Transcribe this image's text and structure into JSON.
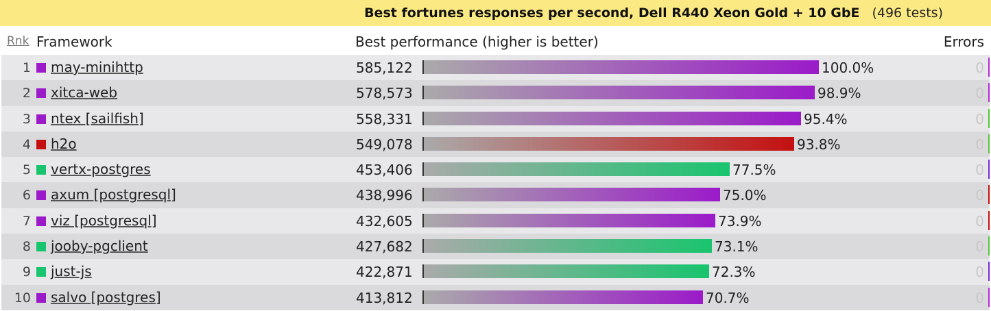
{
  "banner": {
    "title": "Best fortunes responses per second, Dell R440 Xeon Gold + 10 GbE",
    "tests": "(496 tests)"
  },
  "header": {
    "rank": "Rnk",
    "framework": "Framework",
    "performance": "Best performance (higher is better)",
    "errors": "Errors"
  },
  "colors": {
    "purple": "#9b1bc9",
    "red": "#c41010",
    "green": "#19c46e",
    "banner": "#fbea83"
  },
  "chart_data": {
    "type": "bar",
    "title": "Best fortunes responses per second, Dell R440 Xeon Gold + 10 GbE",
    "xlabel": "Best performance (higher is better)",
    "ylabel": "",
    "categories": [
      "may-minihttp",
      "xitca-web",
      "ntex [sailfish]",
      "h2o",
      "vertx-postgres",
      "axum [postgresql]",
      "viz [postgresql]",
      "jooby-pgclient",
      "just-js",
      "salvo [postgres]"
    ],
    "values": [
      585122,
      578573,
      558331,
      549078,
      453406,
      438996,
      432605,
      427682,
      422871,
      413812
    ],
    "ylim": [
      0,
      585122
    ],
    "rows": [
      {
        "rank": "1",
        "name": "may-minihttp",
        "value": 585122,
        "value_label": "585,122",
        "pct": "100.0%",
        "errors": "0",
        "color": "#9b1bc9",
        "edge": "#b22ad6"
      },
      {
        "rank": "2",
        "name": "xitca-web",
        "value": 578573,
        "value_label": "578,573",
        "pct": "98.9%",
        "errors": "0",
        "color": "#9b1bc9",
        "edge": "#b22ad6"
      },
      {
        "rank": "3",
        "name": "ntex [sailfish]",
        "value": 558331,
        "value_label": "558,331",
        "pct": "95.4%",
        "errors": "0",
        "color": "#9b1bc9",
        "edge": "#5ac23a"
      },
      {
        "rank": "4",
        "name": "h2o",
        "value": 549078,
        "value_label": "549,078",
        "pct": "93.8%",
        "errors": "0",
        "color": "#c41010",
        "edge": "#5ac23a"
      },
      {
        "rank": "5",
        "name": "vertx-postgres",
        "value": 453406,
        "value_label": "453,406",
        "pct": "77.5%",
        "errors": "0",
        "color": "#19c46e",
        "edge": "#7a2ad6"
      },
      {
        "rank": "6",
        "name": "axum [postgresql]",
        "value": 438996,
        "value_label": "438,996",
        "pct": "75.0%",
        "errors": "0",
        "color": "#9b1bc9",
        "edge": "#c41010"
      },
      {
        "rank": "7",
        "name": "viz [postgresql]",
        "value": 432605,
        "value_label": "432,605",
        "pct": "73.9%",
        "errors": "0",
        "color": "#9b1bc9",
        "edge": "#c41010"
      },
      {
        "rank": "8",
        "name": "jooby-pgclient",
        "value": 427682,
        "value_label": "427,682",
        "pct": "73.1%",
        "errors": "0",
        "color": "#19c46e",
        "edge": "#5ac23a"
      },
      {
        "rank": "9",
        "name": "just-js",
        "value": 422871,
        "value_label": "422,871",
        "pct": "72.3%",
        "errors": "0",
        "color": "#19c46e",
        "edge": "#7a2ad6"
      },
      {
        "rank": "10",
        "name": "salvo [postgres]",
        "value": 413812,
        "value_label": "413,812",
        "pct": "70.7%",
        "errors": "0",
        "color": "#9b1bc9",
        "edge": "#b22ad6"
      }
    ]
  }
}
